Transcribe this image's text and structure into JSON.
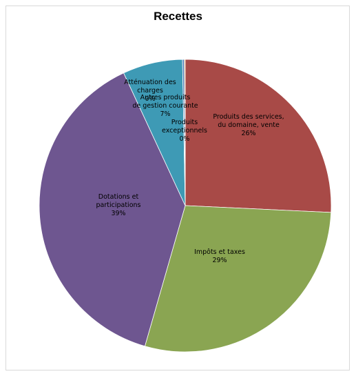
{
  "chart_data": {
    "type": "pie",
    "title": "Recettes",
    "slices": [
      {
        "label_lines": [
          "Produits des services,",
          "du domaine, vente"
        ],
        "pct_label": "26%",
        "value": 26,
        "color": "#a84a47"
      },
      {
        "label_lines": [
          "Impôts et taxes"
        ],
        "pct_label": "29%",
        "value": 29,
        "color": "#8aa552"
      },
      {
        "label_lines": [
          "Dotations et",
          "participations"
        ],
        "pct_label": "39%",
        "value": 39,
        "color": "#6e5690"
      },
      {
        "label_lines": [
          "Autres produits",
          "de gestion courante"
        ],
        "pct_label": "7%",
        "value": 6.7,
        "color": "#3e9ab5"
      },
      {
        "label_lines": [
          "Atténuation des",
          "charges"
        ],
        "pct_label": "0%",
        "value": 0.2,
        "color": "#4a7ab5"
      },
      {
        "label_lines": [
          "Produits",
          "exceptionnels"
        ],
        "pct_label": "0%",
        "value": 0.1,
        "color": "#d98c38"
      }
    ],
    "legend": "none"
  }
}
